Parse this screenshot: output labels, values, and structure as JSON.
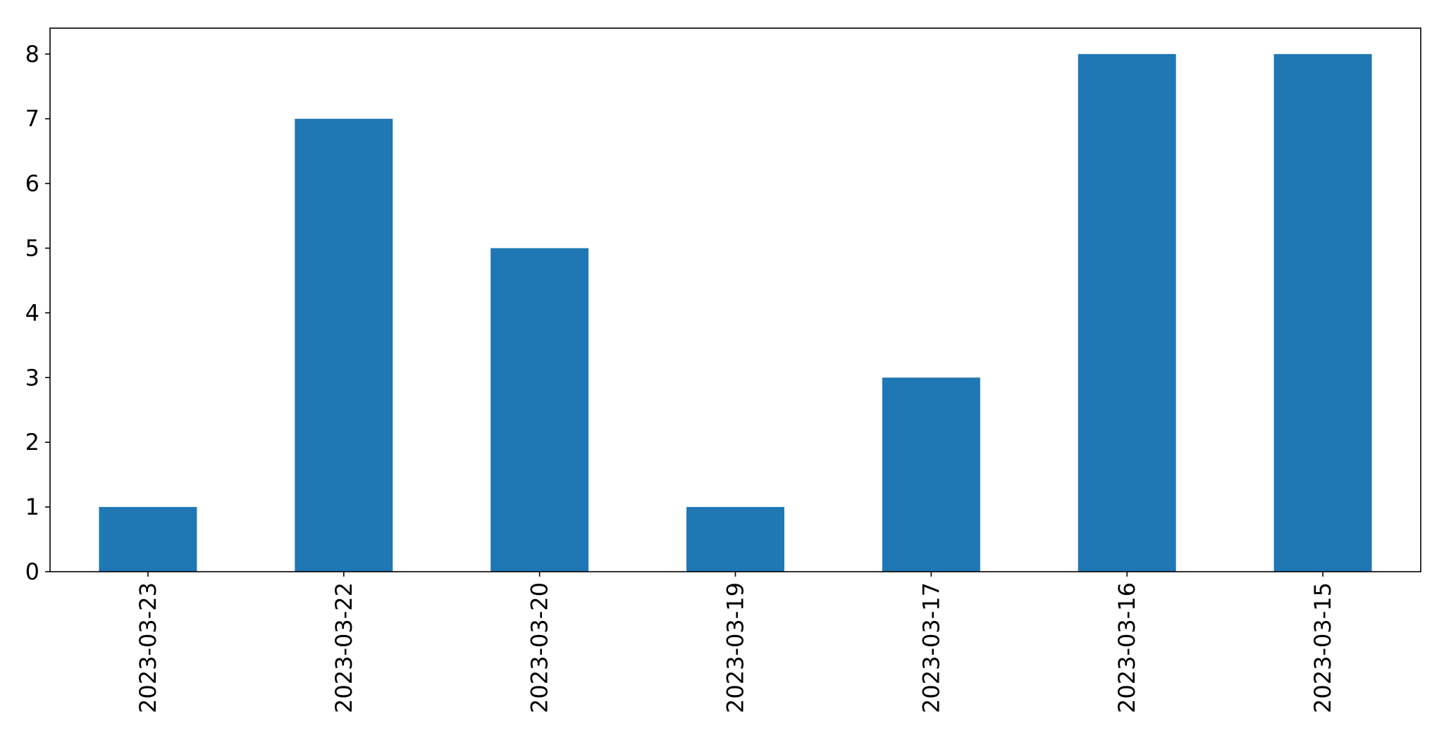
{
  "chart_data": {
    "type": "bar",
    "title": "",
    "xlabel": "",
    "ylabel": "",
    "categories": [
      "2023-03-23",
      "2023-03-22",
      "2023-03-20",
      "2023-03-19",
      "2023-03-17",
      "2023-03-16",
      "2023-03-15"
    ],
    "values": [
      1,
      7,
      5,
      1,
      3,
      8,
      8
    ],
    "ylim": [
      0,
      8.4
    ],
    "yticks": [
      0,
      1,
      2,
      3,
      4,
      5,
      6,
      7,
      8
    ],
    "x_tick_rotation": "vertical",
    "grid": false,
    "legend": "none",
    "colors": {
      "bar": "#1f77b4",
      "axis": "#000000",
      "background": "#ffffff"
    }
  }
}
